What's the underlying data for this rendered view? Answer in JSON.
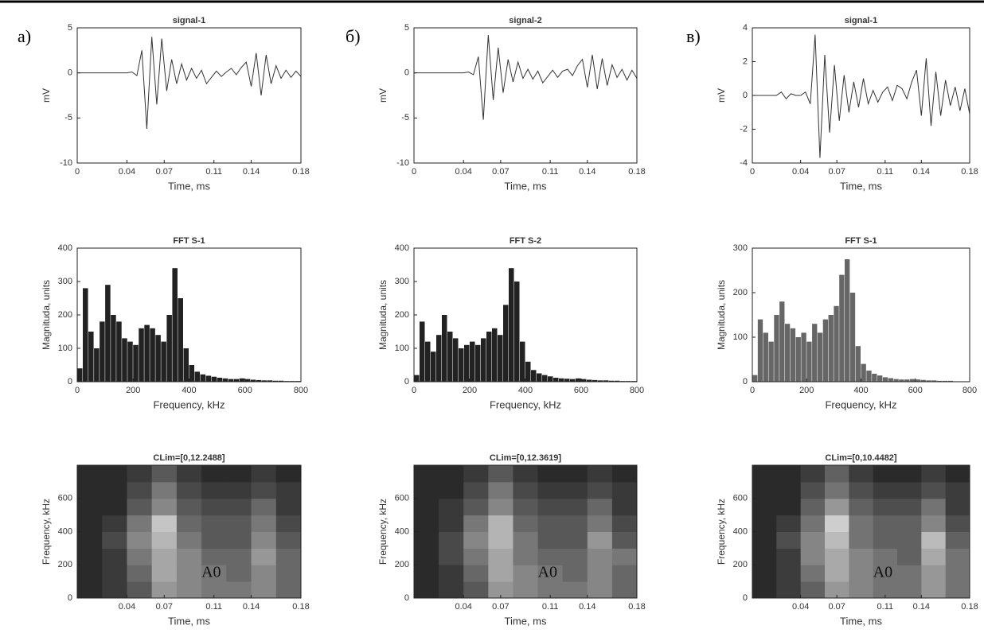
{
  "panel_labels": [
    "а)",
    "б)",
    "в)"
  ],
  "chart_data": [
    {
      "type": "line",
      "title": "signal-1",
      "xlabel": "Time, ms",
      "ylabel": "mV",
      "color": "#333333",
      "x": [
        0,
        0.004,
        0.008,
        0.012,
        0.016,
        0.02,
        0.024,
        0.028,
        0.032,
        0.036,
        0.04,
        0.044,
        0.048,
        0.052,
        0.056,
        0.06,
        0.064,
        0.068,
        0.072,
        0.076,
        0.08,
        0.084,
        0.088,
        0.092,
        0.096,
        0.1,
        0.104,
        0.108,
        0.112,
        0.116,
        0.12,
        0.124,
        0.128,
        0.132,
        0.136,
        0.14,
        0.144,
        0.148,
        0.152,
        0.156,
        0.16,
        0.164,
        0.168,
        0.172,
        0.176,
        0.18
      ],
      "values": [
        0,
        0,
        0,
        0,
        0,
        0,
        0,
        0,
        0,
        0,
        0,
        0.1,
        -0.3,
        2.5,
        -6.2,
        4,
        -3.5,
        3.8,
        -2,
        1.5,
        -1.2,
        1,
        -0.8,
        0.5,
        -0.6,
        0.3,
        -1.2,
        -0.5,
        0.2,
        -0.4,
        0.1,
        0.5,
        -0.2,
        0.6,
        1.2,
        -1.5,
        2.2,
        -2.5,
        2,
        -1.2,
        0.8,
        -0.6,
        0.3,
        -0.5,
        0.2,
        -0.4
      ],
      "xlim": [
        0,
        0.18
      ],
      "xticks": [
        0,
        0.04,
        0.07,
        0.11,
        0.14,
        0.18
      ],
      "ylim": [
        -10,
        5
      ],
      "yticks": [
        -10,
        -5,
        0,
        5
      ]
    },
    {
      "type": "histogram",
      "title": "FFT S-1",
      "xlabel": "Frequency, kHz",
      "ylabel": "Magnituda, units",
      "color": "#222222",
      "bins": [
        0,
        20,
        40,
        60,
        80,
        100,
        120,
        140,
        160,
        180,
        200,
        220,
        240,
        260,
        280,
        300,
        320,
        340,
        360,
        380,
        400,
        420,
        440,
        460,
        480,
        500,
        520,
        540,
        560,
        580,
        600,
        620,
        640,
        660,
        680,
        700,
        720,
        740,
        760,
        780,
        800
      ],
      "values": [
        40,
        280,
        150,
        100,
        180,
        290,
        200,
        180,
        130,
        120,
        110,
        160,
        170,
        160,
        140,
        120,
        200,
        340,
        250,
        100,
        50,
        30,
        22,
        18,
        15,
        12,
        10,
        8,
        8,
        10,
        8,
        6,
        5,
        4,
        4,
        3,
        3,
        2,
        2,
        2
      ],
      "xlim": [
        0,
        800
      ],
      "xticks": [
        0,
        200,
        400,
        600,
        800
      ],
      "ylim": [
        0,
        400
      ],
      "yticks": [
        0,
        100,
        200,
        300,
        400
      ]
    },
    {
      "type": "heatmap",
      "title": "CLim=[0,12.2488]",
      "xlabel": "Time, ms",
      "ylabel": "Frequency, kHz",
      "xbins": [
        0,
        0.02,
        0.04,
        0.06,
        0.08,
        0.1,
        0.12,
        0.14,
        0.16,
        0.18
      ],
      "ybins": [
        0,
        100,
        200,
        300,
        400,
        500,
        600,
        700,
        800
      ],
      "z": [
        [
          0,
          1,
          3,
          7,
          6,
          5,
          5,
          6,
          4
        ],
        [
          0,
          1,
          4,
          8,
          6,
          5,
          4,
          6,
          4
        ],
        [
          0,
          1,
          5,
          8,
          6,
          4,
          4,
          7,
          4
        ],
        [
          0,
          2,
          6,
          9,
          5,
          3,
          3,
          6,
          3
        ],
        [
          0,
          1,
          5,
          10,
          4,
          3,
          3,
          5,
          2
        ],
        [
          0,
          0,
          3,
          6,
          3,
          2,
          2,
          4,
          1
        ],
        [
          0,
          0,
          2,
          5,
          2,
          1,
          1,
          2,
          1
        ],
        [
          0,
          0,
          1,
          3,
          1,
          0,
          0,
          1,
          0
        ]
      ],
      "clim": [
        0,
        12.2488
      ],
      "annotation": {
        "text": "A0",
        "x": 0.1,
        "y": 150
      },
      "xlim": [
        0,
        0.18
      ],
      "xticks": [
        0.04,
        0.07,
        0.11,
        0.14,
        0.18
      ],
      "ylim": [
        0,
        800
      ],
      "yticks": [
        0,
        200,
        400,
        600
      ]
    },
    {
      "type": "line",
      "title": "signal-2",
      "xlabel": "Time, ms",
      "ylabel": "mV",
      "color": "#333333",
      "x": [
        0,
        0.004,
        0.008,
        0.012,
        0.016,
        0.02,
        0.024,
        0.028,
        0.032,
        0.036,
        0.04,
        0.044,
        0.048,
        0.052,
        0.056,
        0.06,
        0.064,
        0.068,
        0.072,
        0.076,
        0.08,
        0.084,
        0.088,
        0.092,
        0.096,
        0.1,
        0.104,
        0.108,
        0.112,
        0.116,
        0.12,
        0.124,
        0.128,
        0.132,
        0.136,
        0.14,
        0.144,
        0.148,
        0.152,
        0.156,
        0.16,
        0.164,
        0.168,
        0.172,
        0.176,
        0.18
      ],
      "values": [
        0,
        0,
        0,
        0,
        0,
        0,
        0,
        0,
        0,
        0,
        0,
        0.1,
        -0.2,
        1.8,
        -5.2,
        4.2,
        -3,
        2.8,
        -2.2,
        1.5,
        -1,
        1.2,
        -0.6,
        0.4,
        -0.7,
        0.2,
        -1.1,
        -0.4,
        0.3,
        -0.5,
        0.2,
        0.4,
        -0.3,
        0.8,
        1.5,
        -1.6,
        2,
        -1.8,
        1.6,
        -1.4,
        0.9,
        -0.5,
        0.4,
        -0.8,
        0.3,
        -0.6
      ],
      "xlim": [
        0,
        0.18
      ],
      "xticks": [
        0,
        0.04,
        0.07,
        0.11,
        0.14,
        0.18
      ],
      "ylim": [
        -10,
        5
      ],
      "yticks": [
        -10,
        -5,
        0,
        5
      ]
    },
    {
      "type": "histogram",
      "title": "FFT S-2",
      "xlabel": "Frequency, kHz",
      "ylabel": "Magnituda, units",
      "color": "#222222",
      "bins": [
        0,
        20,
        40,
        60,
        80,
        100,
        120,
        140,
        160,
        180,
        200,
        220,
        240,
        260,
        280,
        300,
        320,
        340,
        360,
        380,
        400,
        420,
        440,
        460,
        480,
        500,
        520,
        540,
        560,
        580,
        600,
        620,
        640,
        660,
        680,
        700,
        720,
        740,
        760,
        780,
        800
      ],
      "values": [
        20,
        180,
        120,
        90,
        140,
        200,
        150,
        130,
        100,
        110,
        120,
        110,
        130,
        150,
        160,
        140,
        230,
        340,
        300,
        120,
        60,
        35,
        25,
        20,
        16,
        12,
        10,
        9,
        8,
        10,
        8,
        6,
        5,
        4,
        4,
        3,
        3,
        2,
        2,
        2
      ],
      "xlim": [
        0,
        800
      ],
      "xticks": [
        0,
        200,
        400,
        600,
        800
      ],
      "ylim": [
        0,
        400
      ],
      "yticks": [
        0,
        100,
        200,
        300,
        400
      ]
    },
    {
      "type": "heatmap",
      "title": "CLim=[0,12.3619]",
      "xlabel": "Time, ms",
      "ylabel": "Frequency, kHz",
      "xbins": [
        0,
        0.02,
        0.04,
        0.06,
        0.08,
        0.1,
        0.12,
        0.14,
        0.16,
        0.18
      ],
      "ybins": [
        0,
        100,
        200,
        300,
        400,
        500,
        600,
        700,
        800
      ],
      "z": [
        [
          0,
          1,
          3,
          7,
          6,
          5,
          5,
          6,
          4
        ],
        [
          0,
          1,
          4,
          8,
          6,
          5,
          4,
          6,
          4
        ],
        [
          0,
          2,
          5,
          8,
          5,
          4,
          4,
          6,
          5
        ],
        [
          0,
          2,
          6,
          9,
          5,
          3,
          3,
          7,
          3
        ],
        [
          0,
          1,
          5,
          9,
          4,
          3,
          3,
          5,
          2
        ],
        [
          0,
          1,
          3,
          6,
          3,
          2,
          2,
          4,
          1
        ],
        [
          0,
          0,
          2,
          5,
          2,
          1,
          1,
          2,
          1
        ],
        [
          0,
          0,
          1,
          3,
          1,
          0,
          0,
          1,
          0
        ]
      ],
      "clim": [
        0,
        12.3619
      ],
      "annotation": {
        "text": "A0",
        "x": 0.1,
        "y": 150
      },
      "xlim": [
        0,
        0.18
      ],
      "xticks": [
        0.04,
        0.07,
        0.11,
        0.14,
        0.18
      ],
      "ylim": [
        0,
        800
      ],
      "yticks": [
        0,
        200,
        400,
        600
      ]
    },
    {
      "type": "line",
      "title": "signal-1",
      "xlabel": "Time, ms",
      "ylabel": "mV",
      "color": "#333333",
      "x": [
        0,
        0.004,
        0.008,
        0.012,
        0.016,
        0.02,
        0.024,
        0.028,
        0.032,
        0.036,
        0.04,
        0.044,
        0.048,
        0.052,
        0.056,
        0.06,
        0.064,
        0.068,
        0.072,
        0.076,
        0.08,
        0.084,
        0.088,
        0.092,
        0.096,
        0.1,
        0.104,
        0.108,
        0.112,
        0.116,
        0.12,
        0.124,
        0.128,
        0.132,
        0.136,
        0.14,
        0.144,
        0.148,
        0.152,
        0.156,
        0.16,
        0.164,
        0.168,
        0.172,
        0.176,
        0.18
      ],
      "values": [
        0,
        0,
        0,
        0,
        0,
        0,
        0.2,
        -0.2,
        0.1,
        0,
        0,
        0.2,
        -0.5,
        3.6,
        -3.7,
        2.4,
        -2.2,
        1.8,
        -1.5,
        1.2,
        -1,
        0.8,
        -0.7,
        1,
        -0.5,
        0.3,
        -0.4,
        0.2,
        0.5,
        -0.3,
        0.6,
        0.4,
        -0.2,
        0.8,
        1.5,
        -1.2,
        2.2,
        -1.8,
        1.4,
        -1.2,
        0.9,
        -0.6,
        0.5,
        -0.9,
        0.4,
        -1.1
      ],
      "xlim": [
        0,
        0.18
      ],
      "xticks": [
        0,
        0.04,
        0.07,
        0.11,
        0.14,
        0.18
      ],
      "ylim": [
        -4,
        4
      ],
      "yticks": [
        -4,
        -2,
        0,
        2,
        4
      ]
    },
    {
      "type": "histogram",
      "title": "FFT S-1",
      "xlabel": "Frequency, kHz",
      "ylabel": "Magnituda, units",
      "color": "#666666",
      "bins": [
        0,
        20,
        40,
        60,
        80,
        100,
        120,
        140,
        160,
        180,
        200,
        220,
        240,
        260,
        280,
        300,
        320,
        340,
        360,
        380,
        400,
        420,
        440,
        460,
        480,
        500,
        520,
        540,
        560,
        580,
        600,
        620,
        640,
        660,
        680,
        700,
        720,
        740,
        760,
        780,
        800
      ],
      "values": [
        15,
        140,
        110,
        90,
        150,
        180,
        130,
        120,
        100,
        110,
        90,
        130,
        110,
        140,
        150,
        170,
        240,
        275,
        200,
        80,
        40,
        25,
        18,
        14,
        10,
        8,
        6,
        5,
        5,
        6,
        5,
        4,
        3,
        3,
        2,
        2,
        2,
        1,
        1,
        1
      ],
      "xlim": [
        0,
        800
      ],
      "xticks": [
        0,
        200,
        400,
        600,
        800
      ],
      "ylim": [
        0,
        300
      ],
      "yticks": [
        0,
        100,
        200,
        300
      ]
    },
    {
      "type": "heatmap",
      "title": "CLim=[0,10.4482]",
      "xlabel": "Time, ms",
      "ylabel": "Frequency, kHz",
      "xbins": [
        0,
        0.02,
        0.04,
        0.06,
        0.08,
        0.1,
        0.12,
        0.14,
        0.16,
        0.18
      ],
      "ybins": [
        0,
        100,
        200,
        300,
        400,
        500,
        600,
        700,
        800
      ],
      "z": [
        [
          0,
          1,
          3,
          6,
          5,
          4,
          4,
          6,
          4
        ],
        [
          0,
          1,
          4,
          7,
          5,
          4,
          4,
          6,
          4
        ],
        [
          0,
          1,
          5,
          7,
          5,
          4,
          3,
          7,
          4
        ],
        [
          0,
          2,
          5,
          8,
          4,
          3,
          3,
          8,
          3
        ],
        [
          0,
          1,
          4,
          9,
          4,
          3,
          3,
          5,
          2
        ],
        [
          0,
          0,
          3,
          6,
          3,
          2,
          2,
          4,
          1
        ],
        [
          0,
          0,
          2,
          4,
          2,
          1,
          1,
          2,
          1
        ],
        [
          0,
          0,
          1,
          3,
          1,
          0,
          0,
          1,
          0
        ]
      ],
      "clim": [
        0,
        10.4482
      ],
      "annotation": {
        "text": "A0",
        "x": 0.1,
        "y": 150
      },
      "xlim": [
        0,
        0.18
      ],
      "xticks": [
        0.04,
        0.07,
        0.11,
        0.14,
        0.18
      ],
      "ylim": [
        0,
        800
      ],
      "yticks": [
        0,
        200,
        400,
        600
      ]
    }
  ]
}
